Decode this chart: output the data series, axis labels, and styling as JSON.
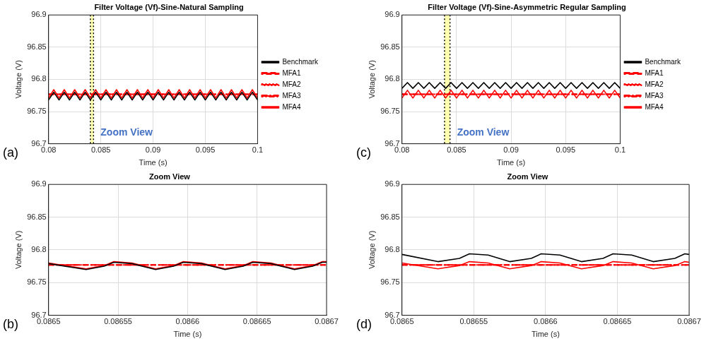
{
  "chart_data": [
    {
      "type": "line",
      "title": "Filter Voltage (Vf)-Sine-Natural Sampling",
      "xlabel": "Time (s)",
      "ylabel": "Voltage (V)",
      "x": [
        0.08,
        0.0805,
        0.081,
        0.0815,
        0.082,
        0.0825,
        0.083,
        0.0835,
        0.084,
        0.0845,
        0.085,
        0.0855,
        0.086,
        0.0865,
        0.087,
        0.0875,
        0.088,
        0.0885,
        0.089,
        0.0895,
        0.09,
        0.0905,
        0.091,
        0.0915,
        0.092,
        0.0925,
        0.093,
        0.0935,
        0.094,
        0.0945,
        0.095,
        0.0955,
        0.096,
        0.0965,
        0.097,
        0.0975,
        0.098,
        0.0985,
        0.099,
        0.0995,
        0.1
      ],
      "series": [
        {
          "name": "Benchmark",
          "color": "#000000",
          "line_style": "solid",
          "values": [
            96.768,
            96.78,
            96.768,
            96.78,
            96.768,
            96.78,
            96.768,
            96.78,
            96.768,
            96.78,
            96.768,
            96.78,
            96.768,
            96.78,
            96.768,
            96.78,
            96.768,
            96.78,
            96.768,
            96.78,
            96.768,
            96.78,
            96.768,
            96.78,
            96.768,
            96.78,
            96.768,
            96.78,
            96.768,
            96.78,
            96.768,
            96.78,
            96.768,
            96.78,
            96.768,
            96.78,
            96.768,
            96.78,
            96.768,
            96.78,
            96.768
          ]
        },
        {
          "name": "MFA1",
          "color": "#ff0000",
          "line_style": "dashed",
          "x": [
            0.08,
            0.1
          ],
          "values": [
            96.777,
            96.777
          ]
        },
        {
          "name": "MFA2",
          "color": "#ff0000",
          "line_style": "dotted",
          "x": [
            0.08,
            0.1
          ],
          "values": [
            96.777,
            96.777
          ]
        },
        {
          "name": "MFA3",
          "color": "#ff0000",
          "line_style": "dashdot",
          "x": [
            0.08,
            0.1
          ],
          "values": [
            96.777,
            96.777
          ]
        },
        {
          "name": "MFA4",
          "color": "#ff0000",
          "line_style": "solid",
          "values": [
            96.771,
            96.784,
            96.771,
            96.784,
            96.771,
            96.784,
            96.771,
            96.784,
            96.771,
            96.784,
            96.771,
            96.784,
            96.771,
            96.784,
            96.771,
            96.784,
            96.771,
            96.784,
            96.771,
            96.784,
            96.771,
            96.784,
            96.771,
            96.784,
            96.771,
            96.784,
            96.771,
            96.784,
            96.771,
            96.784,
            96.771,
            96.784,
            96.771,
            96.784,
            96.771,
            96.784,
            96.771,
            96.784,
            96.771,
            96.784,
            96.771
          ]
        }
      ],
      "xlim": [
        0.08,
        0.1
      ],
      "xticks": [
        0.08,
        0.085,
        0.09,
        0.095,
        0.1
      ],
      "ylim": [
        96.7,
        96.9
      ],
      "yticks": [
        96.7,
        96.75,
        96.8,
        96.85,
        96.9
      ],
      "bands": [
        {
          "axis": "x",
          "from": 0.084,
          "to": 0.0843,
          "label": "Zoom View",
          "color": "#ffffb0"
        }
      ],
      "ref_lines": [
        {
          "axis": "x",
          "value": 0.084,
          "color": "#000000",
          "line_style": "dotted"
        },
        {
          "axis": "x",
          "value": 0.0843,
          "color": "#000000",
          "line_style": "dotted"
        }
      ],
      "annotations": [
        "(a)"
      ],
      "grid": true,
      "legend": "right",
      "marker": "none"
    },
    {
      "type": "line",
      "title": "Filter Voltage (Vf)-Sine-Asymmetric Regular Sampling",
      "xlabel": "Time (s)",
      "ylabel": "Voltage (V)",
      "x": [
        0.08,
        0.0805,
        0.081,
        0.0815,
        0.082,
        0.0825,
        0.083,
        0.0835,
        0.084,
        0.0845,
        0.085,
        0.0855,
        0.086,
        0.0865,
        0.087,
        0.0875,
        0.088,
        0.0885,
        0.089,
        0.0895,
        0.09,
        0.0905,
        0.091,
        0.0915,
        0.092,
        0.0925,
        0.093,
        0.0935,
        0.094,
        0.0945,
        0.095,
        0.0955,
        0.096,
        0.0965,
        0.097,
        0.0975,
        0.098,
        0.0985,
        0.099,
        0.0995,
        0.1
      ],
      "series": [
        {
          "name": "Benchmark",
          "color": "#000000",
          "line_style": "solid",
          "values": [
            96.786,
            96.795,
            96.786,
            96.795,
            96.786,
            96.795,
            96.786,
            96.795,
            96.786,
            96.795,
            96.786,
            96.795,
            96.786,
            96.795,
            96.786,
            96.795,
            96.786,
            96.795,
            96.786,
            96.795,
            96.786,
            96.795,
            96.786,
            96.795,
            96.786,
            96.795,
            96.786,
            96.795,
            96.786,
            96.795,
            96.786,
            96.795,
            96.786,
            96.795,
            96.786,
            96.795,
            96.786,
            96.795,
            96.786,
            96.795,
            96.786
          ]
        },
        {
          "name": "MFA1",
          "color": "#ff0000",
          "line_style": "dashed",
          "x": [
            0.08,
            0.1
          ],
          "values": [
            96.777,
            96.777
          ]
        },
        {
          "name": "MFA2",
          "color": "#ff0000",
          "line_style": "dotted",
          "x": [
            0.08,
            0.1
          ],
          "values": [
            96.777,
            96.777
          ]
        },
        {
          "name": "MFA3",
          "color": "#ff0000",
          "line_style": "dashdot",
          "x": [
            0.08,
            0.1
          ],
          "values": [
            96.777,
            96.777
          ]
        },
        {
          "name": "MFA4",
          "color": "#ff0000",
          "line_style": "solid",
          "values": [
            96.771,
            96.783,
            96.771,
            96.783,
            96.771,
            96.783,
            96.771,
            96.783,
            96.771,
            96.783,
            96.771,
            96.783,
            96.771,
            96.783,
            96.771,
            96.783,
            96.771,
            96.783,
            96.771,
            96.783,
            96.771,
            96.783,
            96.771,
            96.783,
            96.771,
            96.783,
            96.771,
            96.783,
            96.771,
            96.783,
            96.771,
            96.783,
            96.771,
            96.783,
            96.771,
            96.783,
            96.771,
            96.783,
            96.771,
            96.783,
            96.771
          ]
        }
      ],
      "xlim": [
        0.08,
        0.1
      ],
      "xticks": [
        0.08,
        0.085,
        0.09,
        0.095,
        0.1
      ],
      "ylim": [
        96.7,
        96.9
      ],
      "yticks": [
        96.7,
        96.75,
        96.8,
        96.85,
        96.9
      ],
      "bands": [
        {
          "axis": "x",
          "from": 0.0839,
          "to": 0.0844,
          "label": "Zoom View",
          "color": "#ffffb0"
        }
      ],
      "ref_lines": [
        {
          "axis": "x",
          "value": 0.0839,
          "color": "#000000",
          "line_style": "dotted"
        },
        {
          "axis": "x",
          "value": 0.0844,
          "color": "#000000",
          "line_style": "dotted"
        }
      ],
      "annotations": [
        "(c)"
      ],
      "grid": true,
      "legend": "right",
      "marker": "none"
    },
    {
      "type": "line",
      "title": "Zoom View",
      "xlabel": "Time (s)",
      "ylabel": "Voltage (V)",
      "series": [
        {
          "color": "#000000",
          "line_style": "solid",
          "x": [
            0.0865,
            0.086527,
            0.08654,
            0.086547,
            0.08656,
            0.086577,
            0.08659,
            0.086597,
            0.08661,
            0.086627,
            0.08664,
            0.086647,
            0.08666,
            0.086677,
            0.08669,
            0.086697,
            0.0867
          ],
          "values": [
            96.779,
            96.77,
            96.775,
            96.781,
            96.779,
            96.77,
            96.775,
            96.781,
            96.779,
            96.77,
            96.775,
            96.781,
            96.779,
            96.77,
            96.775,
            96.781,
            96.781
          ]
        },
        {
          "color": "#ff0000",
          "line_style": "dashed",
          "x": [
            0.0865,
            0.0867
          ],
          "values": [
            96.777,
            96.777
          ]
        },
        {
          "color": "#ff0000",
          "line_style": "dotted",
          "x": [
            0.0865,
            0.0867
          ],
          "values": [
            96.777,
            96.777
          ]
        },
        {
          "color": "#ff0000",
          "line_style": "dashdot",
          "x": [
            0.0865,
            0.0867
          ],
          "values": [
            96.777,
            96.777
          ]
        },
        {
          "color": "#ff0000",
          "line_style": "solid",
          "x": [
            0.0865,
            0.086527,
            0.08654,
            0.086547,
            0.08656,
            0.086577,
            0.08659,
            0.086597,
            0.08661,
            0.086627,
            0.08664,
            0.086647,
            0.08666,
            0.086677,
            0.08669,
            0.086697,
            0.0867
          ],
          "values": [
            96.78,
            96.771,
            96.776,
            96.782,
            96.78,
            96.771,
            96.776,
            96.782,
            96.78,
            96.771,
            96.776,
            96.782,
            96.78,
            96.771,
            96.776,
            96.782,
            96.782
          ]
        }
      ],
      "xlim": [
        0.0865,
        0.0867
      ],
      "xticks": [
        0.0865,
        0.08655,
        0.0866,
        0.08665,
        0.0867
      ],
      "ylim": [
        96.7,
        96.9
      ],
      "yticks": [
        96.7,
        96.75,
        96.8,
        96.85,
        96.9
      ],
      "annotations": [
        "(b)"
      ],
      "grid": true,
      "marker": "none"
    },
    {
      "type": "line",
      "title": "Zoom View",
      "xlabel": "Time (s)",
      "ylabel": "Voltage (V)",
      "series": [
        {
          "color": "#000000",
          "line_style": "solid",
          "x": [
            0.0865,
            0.086525,
            0.08654,
            0.086547,
            0.08656,
            0.086575,
            0.08659,
            0.086597,
            0.08661,
            0.086625,
            0.08664,
            0.086647,
            0.08666,
            0.086675,
            0.08669,
            0.086697,
            0.0867
          ],
          "values": [
            96.793,
            96.782,
            96.787,
            96.794,
            96.792,
            96.782,
            96.787,
            96.794,
            96.792,
            96.782,
            96.787,
            96.794,
            96.792,
            96.782,
            96.787,
            96.794,
            96.793
          ]
        },
        {
          "color": "#ff0000",
          "line_style": "dashed",
          "x": [
            0.0865,
            0.0867
          ],
          "values": [
            96.777,
            96.777
          ]
        },
        {
          "color": "#ff0000",
          "line_style": "dotted",
          "x": [
            0.0865,
            0.0867
          ],
          "values": [
            96.777,
            96.777
          ]
        },
        {
          "color": "#ff0000",
          "line_style": "dashdot",
          "x": [
            0.0865,
            0.0867
          ],
          "values": [
            96.777,
            96.777
          ]
        },
        {
          "color": "#ff0000",
          "line_style": "solid",
          "x": [
            0.0865,
            0.086525,
            0.08654,
            0.086547,
            0.08656,
            0.086575,
            0.08659,
            0.086597,
            0.08661,
            0.086625,
            0.08664,
            0.086647,
            0.08666,
            0.086675,
            0.08669,
            0.086697,
            0.0867
          ],
          "values": [
            96.78,
            96.771,
            96.776,
            96.782,
            96.78,
            96.771,
            96.776,
            96.782,
            96.78,
            96.771,
            96.776,
            96.782,
            96.78,
            96.771,
            96.776,
            96.782,
            96.781
          ]
        }
      ],
      "xlim": [
        0.0865,
        0.0867
      ],
      "xticks": [
        0.0865,
        0.08655,
        0.0866,
        0.08665,
        0.0867
      ],
      "ylim": [
        96.7,
        96.9
      ],
      "yticks": [
        96.7,
        96.75,
        96.8,
        96.85,
        96.9
      ],
      "annotations": [
        "(d)"
      ],
      "grid": true,
      "marker": "none"
    }
  ]
}
